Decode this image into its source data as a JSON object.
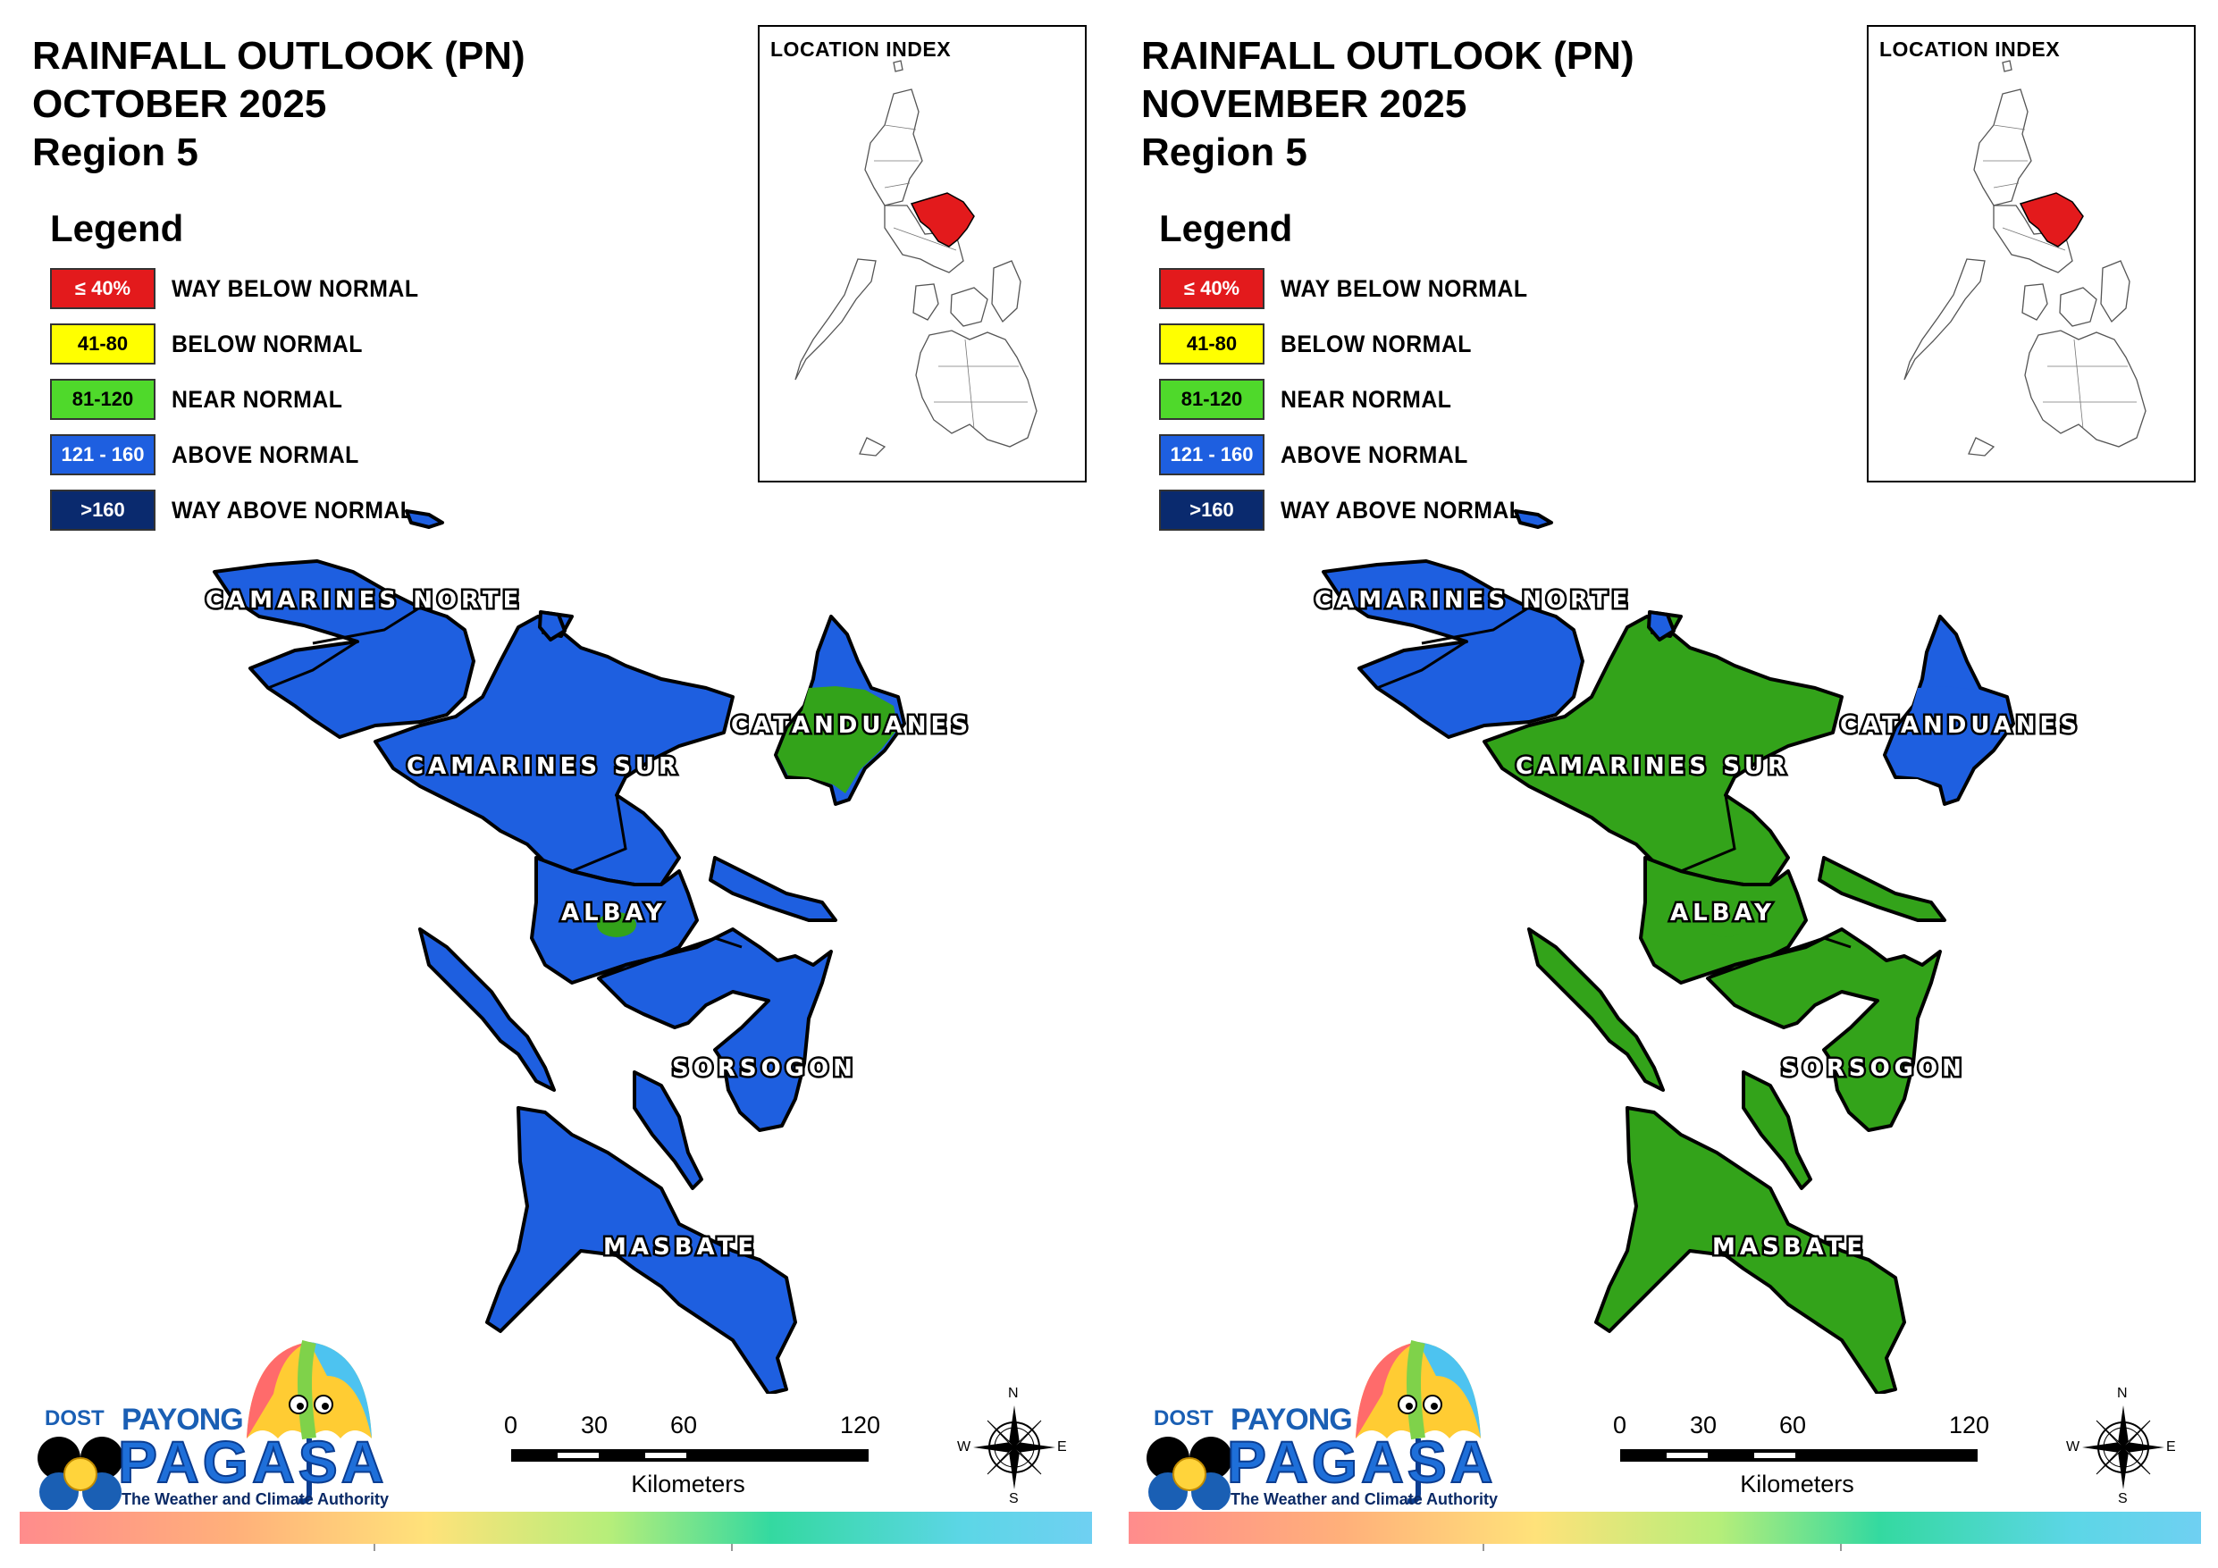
{
  "colors": {
    "way_below": "#e31a1c",
    "below": "#ffff00",
    "near": "#4fd92b",
    "near_map": "#33a31a",
    "above": "#1e5fe0",
    "way_above": "#0a2a6e"
  },
  "legend": {
    "title": "Legend",
    "items": [
      {
        "range": "≤ 40%",
        "label": "WAY BELOW NORMAL",
        "color": "#e31a1c",
        "text_color": "#ffffff"
      },
      {
        "range": "41-80",
        "label": "BELOW NORMAL",
        "color": "#ffff00",
        "text_color": "#000000"
      },
      {
        "range": "81-120",
        "label": "NEAR NORMAL",
        "color": "#4fd92b",
        "text_color": "#000000"
      },
      {
        "range": "121 - 160",
        "label": "ABOVE NORMAL",
        "color": "#1e5fe0",
        "text_color": "#ffffff"
      },
      {
        "range": ">160",
        "label": "WAY ABOVE NORMAL",
        "color": "#0a2a6e",
        "text_color": "#ffffff"
      }
    ]
  },
  "inset": {
    "label": "LOCATION INDEX",
    "highlight_color": "#e31a1c"
  },
  "provinces": {
    "camarines_norte": "CAMARINES NORTE",
    "camarines_sur": "CAMARINES SUR",
    "catanduanes": "CATANDUANES",
    "albay": "ALBAY",
    "sorsogon": "SORSOGON",
    "masbate": "MASBATE"
  },
  "panels": [
    {
      "title_line1": "RAINFALL OUTLOOK (PN)",
      "title_line2": "OCTOBER 2025",
      "title_line3": "Region 5",
      "fills": {
        "camarines_norte": "above",
        "camarines_sur": "above",
        "catanduanes": "near_map",
        "catanduanes_edge": "above",
        "albay": "above",
        "albay_spot": "near_map",
        "sorsogon": "above",
        "masbate": "above"
      }
    },
    {
      "title_line1": "RAINFALL OUTLOOK (PN)",
      "title_line2": "NOVEMBER 2025",
      "title_line3": "Region 5",
      "fills": {
        "camarines_norte": "above",
        "camarines_sur": "near_map",
        "catanduanes": "above",
        "catanduanes_edge": "above",
        "albay": "near_map",
        "albay_spot": "near_map",
        "sorsogon": "near_map",
        "masbate": "near_map"
      }
    }
  ],
  "scale": {
    "ticks": [
      "0",
      "30",
      "60",
      "120"
    ],
    "units": "Kilometers"
  },
  "compass": {
    "n": "N",
    "s": "S",
    "e": "E",
    "w": "W"
  },
  "logo": {
    "dost": "DOST",
    "payong": "PAYONG",
    "pagasa": "PAGASA",
    "tagline": "The Weather and Climate Authority"
  }
}
